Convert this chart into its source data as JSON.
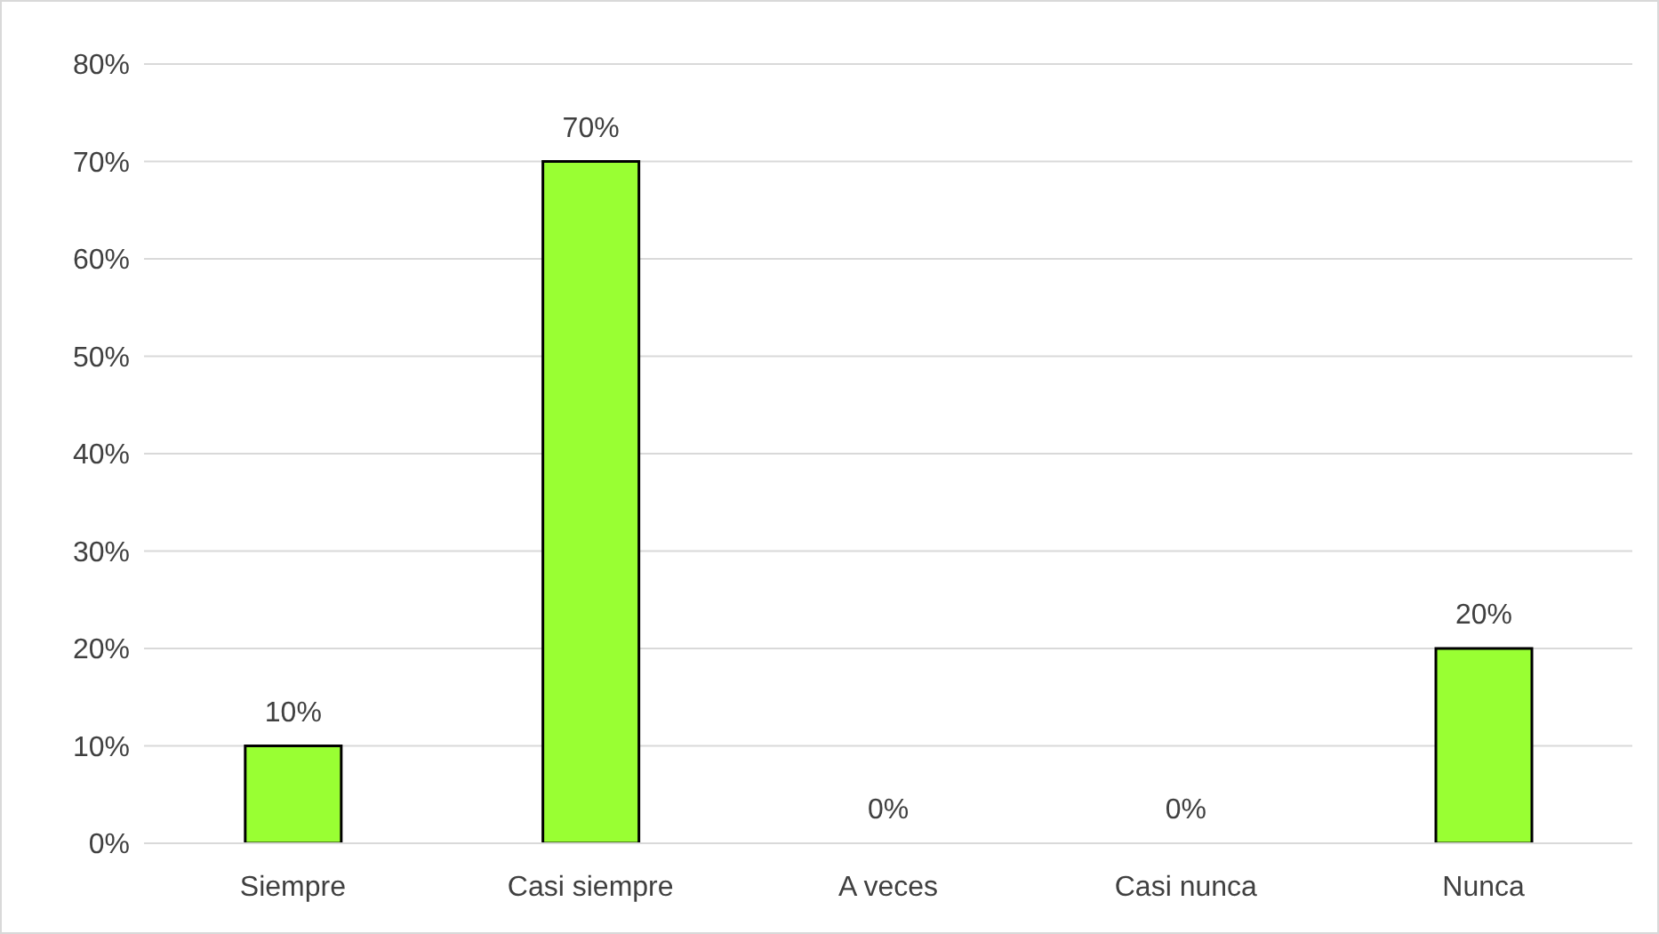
{
  "chart_data": {
    "type": "bar",
    "categories": [
      "Siempre",
      "Casi siempre",
      "A veces",
      "Casi nunca",
      "Nunca"
    ],
    "values": [
      10,
      70,
      0,
      0,
      20
    ],
    "value_labels": [
      "10%",
      "70%",
      "0%",
      "0%",
      "20%"
    ],
    "color": "#99ff33",
    "ylim": [
      0,
      80
    ],
    "yticks": [
      {
        "value": 0,
        "label": "0%"
      },
      {
        "value": 10,
        "label": "10%"
      },
      {
        "value": 20,
        "label": "20%"
      },
      {
        "value": 30,
        "label": "30%"
      },
      {
        "value": 40,
        "label": "40%"
      },
      {
        "value": 50,
        "label": "50%"
      },
      {
        "value": 60,
        "label": "60%"
      },
      {
        "value": 70,
        "label": "70%"
      },
      {
        "value": 80,
        "label": "80%"
      }
    ],
    "grid": "y",
    "legend": false
  }
}
